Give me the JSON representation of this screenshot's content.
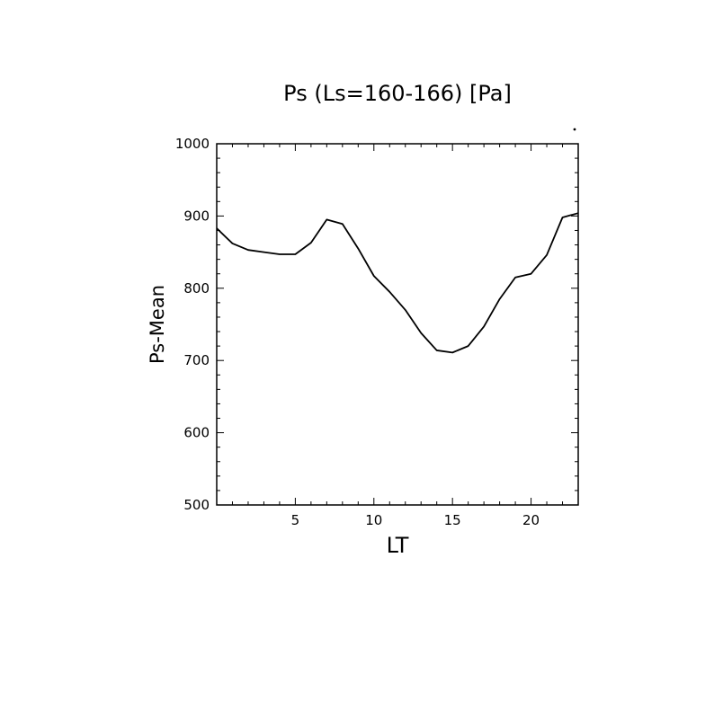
{
  "colors": {
    "background": "#ffffff",
    "line": "#000000",
    "axis": "#000000"
  },
  "chart_data": {
    "type": "line",
    "title": "Ps (Ls=160-166) [Pa]",
    "xlabel": "LT",
    "ylabel": "Ps-Mean",
    "xlim": [
      0,
      23
    ],
    "ylim": [
      500,
      1000
    ],
    "xticks": [
      5,
      10,
      15,
      20
    ],
    "yticks": [
      500,
      600,
      700,
      800,
      900,
      1000
    ],
    "xtick_labels": [
      "5",
      "10",
      "15",
      "20"
    ],
    "ytick_labels": [
      "500",
      "600",
      "700",
      "800",
      "900",
      "1000"
    ],
    "grid": false,
    "series": [
      {
        "x": [
          0,
          1,
          2,
          3,
          4,
          5,
          6,
          7,
          8,
          9,
          10,
          11,
          12,
          13,
          14,
          15,
          16,
          17,
          18,
          19,
          20,
          21,
          22,
          23
        ],
        "y": [
          883,
          862,
          853,
          850,
          847,
          847,
          863,
          895,
          889,
          855,
          817,
          795,
          770,
          738,
          714,
          711,
          720,
          747,
          785,
          815,
          820,
          846,
          898,
          904
        ]
      }
    ]
  }
}
